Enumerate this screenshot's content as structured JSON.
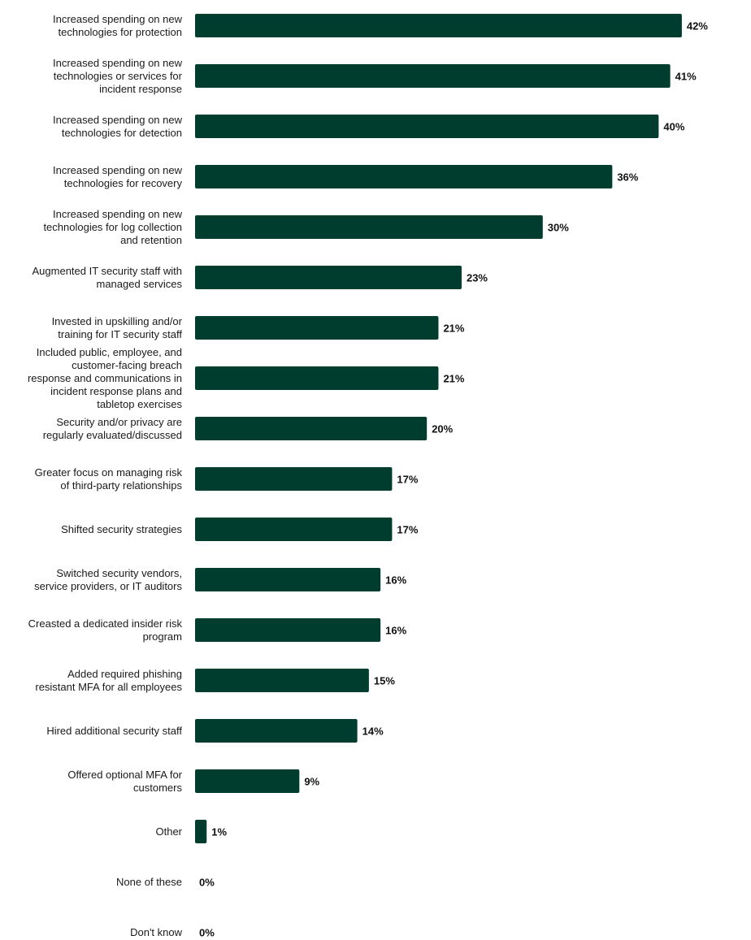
{
  "chart_data": {
    "type": "bar",
    "orientation": "horizontal",
    "title": "",
    "xlabel": "",
    "ylabel": "",
    "xlim": [
      0,
      42
    ],
    "grid": false,
    "bar_color": "#003D2E",
    "value_suffix": "%",
    "categories": [
      [
        "Increased spending on new",
        "technologies for protection"
      ],
      [
        "Increased spending on new",
        "technologies or services for",
        "incident response"
      ],
      [
        "Increased spending on new",
        "technologies for detection"
      ],
      [
        "Increased spending on new",
        "technologies for recovery"
      ],
      [
        "Increased spending on new",
        "technologies for log collection",
        "and retention"
      ],
      [
        "Augmented IT security staff with",
        "managed services"
      ],
      [
        "Invested in upskilling and/or",
        "training for IT security staff"
      ],
      [
        "Included public, employee, and",
        "customer-facing breach",
        "response and communications in",
        "incident response plans and",
        "tabletop exercises"
      ],
      [
        "Security and/or privacy are",
        "regularly evaluated/discussed"
      ],
      [
        "Greater focus on managing risk",
        "of third-party relationships"
      ],
      [
        "Shifted security strategies"
      ],
      [
        "Switched security vendors,",
        "service providers, or IT auditors"
      ],
      [
        "Creasted a dedicated insider risk",
        "program"
      ],
      [
        "Added required phishing",
        "resistant MFA for all employees"
      ],
      [
        "Hired additional security staff"
      ],
      [
        "Offered optional MFA for",
        "customers"
      ],
      [
        "Other"
      ],
      [
        "None of these"
      ],
      [
        "Don't know"
      ]
    ],
    "values": [
      42,
      41,
      40,
      36,
      30,
      23,
      21,
      21,
      20,
      17,
      17,
      16,
      16,
      15,
      14,
      9,
      1,
      0,
      0
    ],
    "data_labels": [
      "42%",
      "41%",
      "40%",
      "36%",
      "30%",
      "23%",
      "21%",
      "21%",
      "20%",
      "17%",
      "17%",
      "16%",
      "16%",
      "15%",
      "14%",
      "9%",
      "1%",
      "0%",
      "0%"
    ]
  }
}
